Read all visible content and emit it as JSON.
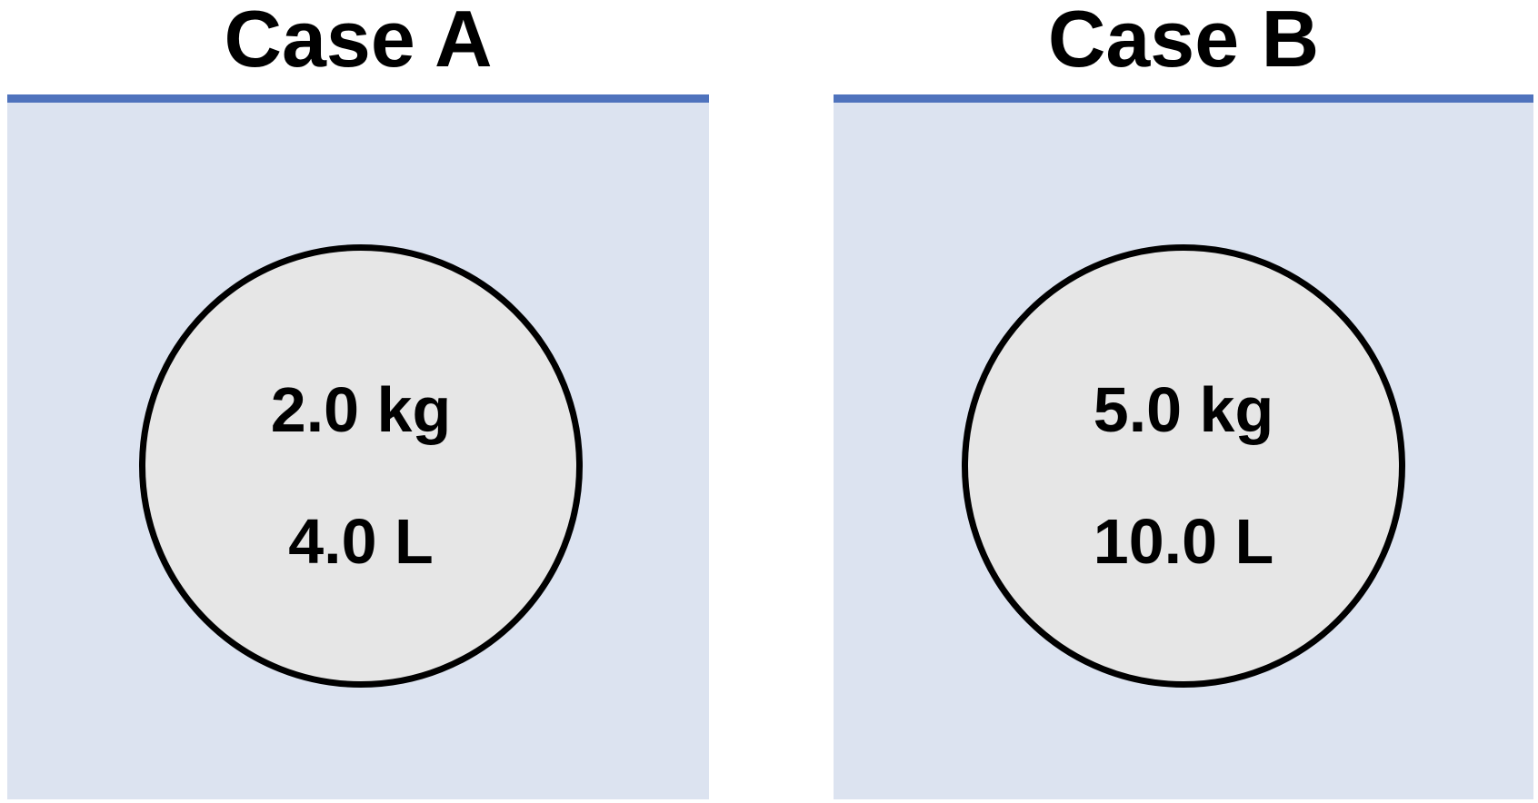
{
  "colors": {
    "background": "#ffffff",
    "liquid": "#dce3f0",
    "liquid_surface": "#4f73bd",
    "ball_fill": "#e6e6e6",
    "outline": "#000000"
  },
  "cases": [
    {
      "title": "Case A",
      "mass": "2.0 kg",
      "volume": "4.0 L"
    },
    {
      "title": "Case B",
      "mass": "5.0 kg",
      "volume": "10.0 L"
    }
  ]
}
